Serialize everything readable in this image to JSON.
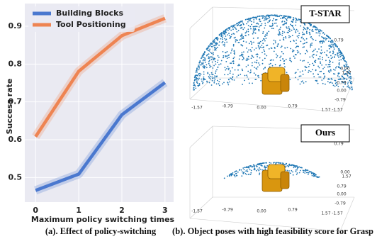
{
  "chart_data": {
    "type": "line",
    "y_label": "Success rate",
    "x_label": "Maximum policy switching times",
    "x": [
      0,
      1,
      2,
      3
    ],
    "xlim": [
      -0.25,
      3.2
    ],
    "xticks": [
      0,
      1,
      2,
      3
    ],
    "ylim": [
      0.435,
      0.96
    ],
    "yticks": [
      0.5,
      0.6,
      0.7,
      0.8,
      0.9
    ],
    "grid": true,
    "legend": "upper left",
    "series": [
      {
        "name": "Building Blocks",
        "color": "#4a78cf",
        "values": [
          0.466,
          0.509,
          0.666,
          0.751
        ]
      },
      {
        "name": "Tool Positioning",
        "color": "#ee8452",
        "values": [
          0.608,
          0.781,
          0.875,
          0.921
        ]
      }
    ]
  },
  "panel_b": {
    "plots": [
      {
        "title": "T-STAR",
        "tick_labels": [
          "0.79",
          "0.00",
          "1.57",
          "0.79",
          "0.00",
          "-0.79",
          "-1.57",
          "-1.57",
          "-0.79",
          "0.00",
          "0.79",
          "1.57"
        ]
      },
      {
        "title": "Ours",
        "tick_labels": [
          "0.79",
          "0.00",
          "1.57",
          "0.79",
          "0.00",
          "-0.79",
          "-1.57",
          "-1.57",
          "-0.79",
          "0.00",
          "0.79",
          "1.57"
        ]
      }
    ]
  },
  "captions": [
    "(a). Effect of policy-switching",
    "(b). Object poses with high feasibility score for Grasp"
  ]
}
